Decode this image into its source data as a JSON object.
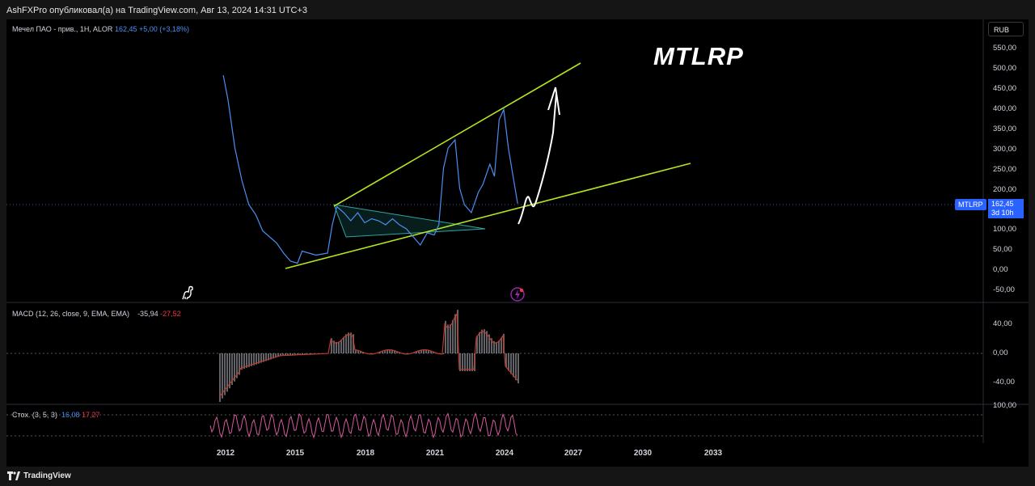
{
  "header": {
    "publisher_line": "AshFXPro опубликовал(а) на TradingView.com, Авг 13, 2024 14:31 UTC+3"
  },
  "main_pane": {
    "symbol_desc": "Мечел ПАО - прив., 1H, ALOR",
    "price": "162,45",
    "change": "+5,00 (+3,18%)",
    "watermark": "MTLRP",
    "currency": "RUB",
    "price_tag_ticker": "MTLRP",
    "price_tag_value": "162,45",
    "price_tag_countdown": "3d 10h",
    "y_ticks": [
      "550,00",
      "500,00",
      "450,00",
      "400,00",
      "350,00",
      "300,00",
      "250,00",
      "200,00",
      "150,00",
      "100,00",
      "50,00",
      "0,00",
      "-50,00"
    ]
  },
  "macd_pane": {
    "title": "MACD (12, 26, close, 9, EMA, EMA)",
    "val1": "-35,94",
    "val2": "-27,52",
    "y_ticks": [
      "40,00",
      "0,00",
      "-40,00"
    ]
  },
  "stoch_pane": {
    "title": "Стох. (3, 5, 3)",
    "val1": "16,08",
    "val2": "17,27",
    "y_ticks": [
      "100,00"
    ]
  },
  "x_axis": {
    "ticks": [
      "2012",
      "2015",
      "2018",
      "2021",
      "2024",
      "2027",
      "2030",
      "2033"
    ]
  },
  "footer": {
    "brand": "TradingView"
  },
  "colors": {
    "price_line": "#4a8ff0",
    "trendline": "#b5e61d",
    "triangle": "#2ea6a0",
    "macd_line": "#c0392b",
    "stoch_line": "#d65aa0",
    "accent": "#2962ff"
  },
  "icons": [
    "dino-icon",
    "lightning-icon",
    "tradingview-logo-icon"
  ],
  "chart_data": {
    "type": "line",
    "series": [
      {
        "values": [
          [
            2011.9,
            480
          ],
          [
            2012.1,
            420
          ],
          [
            2012.4,
            300
          ],
          [
            2012.7,
            220
          ],
          [
            2013.0,
            160
          ],
          [
            2013.3,
            135
          ],
          [
            2013.6,
            95
          ],
          [
            2013.9,
            80
          ],
          [
            2014.2,
            65
          ],
          [
            2014.5,
            40
          ],
          [
            2014.8,
            20
          ],
          [
            2015.1,
            15
          ],
          [
            2015.3,
            45
          ],
          [
            2015.6,
            40
          ],
          [
            2015.9,
            35
          ],
          [
            2016.2,
            38
          ],
          [
            2016.4,
            40
          ],
          [
            2016.6,
            110
          ],
          [
            2016.8,
            155
          ],
          [
            2017.1,
            140
          ],
          [
            2017.4,
            120
          ],
          [
            2017.7,
            140
          ],
          [
            2018.0,
            115
          ],
          [
            2018.3,
            125
          ],
          [
            2018.6,
            120
          ],
          [
            2018.9,
            110
          ],
          [
            2019.2,
            125
          ],
          [
            2019.5,
            110
          ],
          [
            2019.8,
            100
          ],
          [
            2020.1,
            80
          ],
          [
            2020.4,
            60
          ],
          [
            2020.7,
            90
          ],
          [
            2021.0,
            85
          ],
          [
            2021.2,
            110
          ],
          [
            2021.4,
            250
          ],
          [
            2021.6,
            300
          ],
          [
            2021.9,
            320
          ],
          [
            2022.1,
            200
          ],
          [
            2022.3,
            160
          ],
          [
            2022.6,
            140
          ],
          [
            2022.9,
            190
          ],
          [
            2023.1,
            210
          ],
          [
            2023.4,
            260
          ],
          [
            2023.6,
            230
          ],
          [
            2023.8,
            370
          ],
          [
            2024.0,
            395
          ],
          [
            2024.2,
            300
          ],
          [
            2024.4,
            230
          ],
          [
            2024.6,
            162.45
          ]
        ]
      }
    ],
    "ylim": [
      -50,
      550
    ],
    "xlim": [
      2011.2,
      2035.5
    ]
  }
}
